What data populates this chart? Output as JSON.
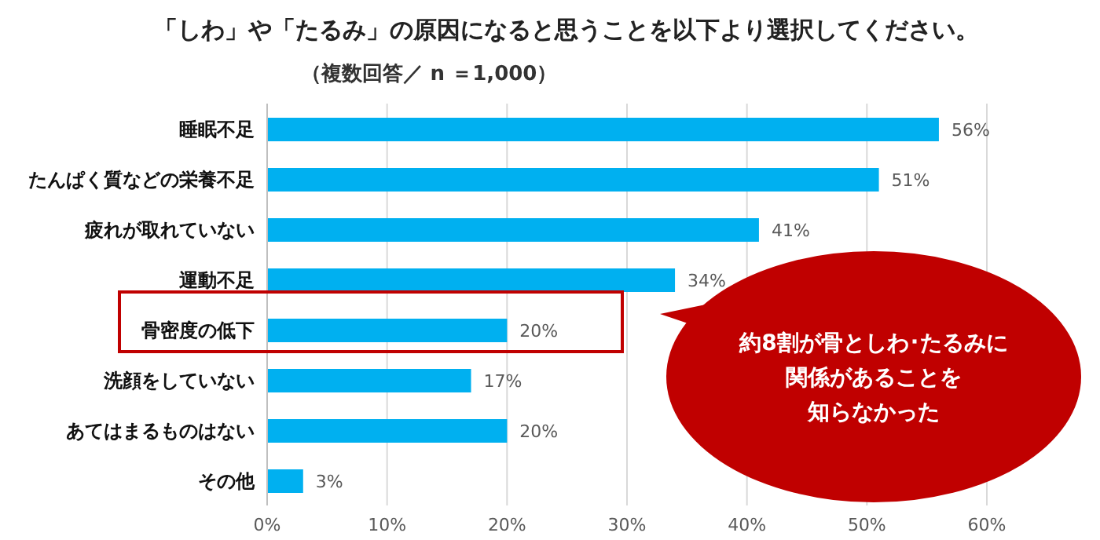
{
  "chart_data": {
    "type": "bar",
    "orientation": "horizontal",
    "title": "「しわ」や「たるみ」の原因になると思うことを以下より選択してください。",
    "subtitle": "（複数回答／ n ＝1,000）",
    "categories": [
      "睡眠不足",
      "たんぱく質などの栄養不足",
      "疲れが取れていない",
      "運動不足",
      "骨密度の低下",
      "洗顔をしていない",
      "あてはまるものはない",
      "その他"
    ],
    "values": [
      56,
      51,
      41,
      34,
      20,
      17,
      20,
      3
    ],
    "value_labels": [
      "56%",
      "51%",
      "41%",
      "34%",
      "20%",
      "17%",
      "20%",
      "3%"
    ],
    "color": "#00b0f0",
    "xlim": [
      0,
      60
    ],
    "xticks": [
      {
        "value": 0,
        "label": "0%"
      },
      {
        "value": 10,
        "label": "10%"
      },
      {
        "value": 20,
        "label": "20%"
      },
      {
        "value": 30,
        "label": "30%"
      },
      {
        "value": 40,
        "label": "40%"
      },
      {
        "value": 50,
        "label": "50%"
      },
      {
        "value": 60,
        "label": "60%"
      }
    ],
    "grid": "x",
    "annotations": [
      "約8割が骨としわ･たるみに",
      "関係があることを",
      "知らなかった"
    ]
  }
}
